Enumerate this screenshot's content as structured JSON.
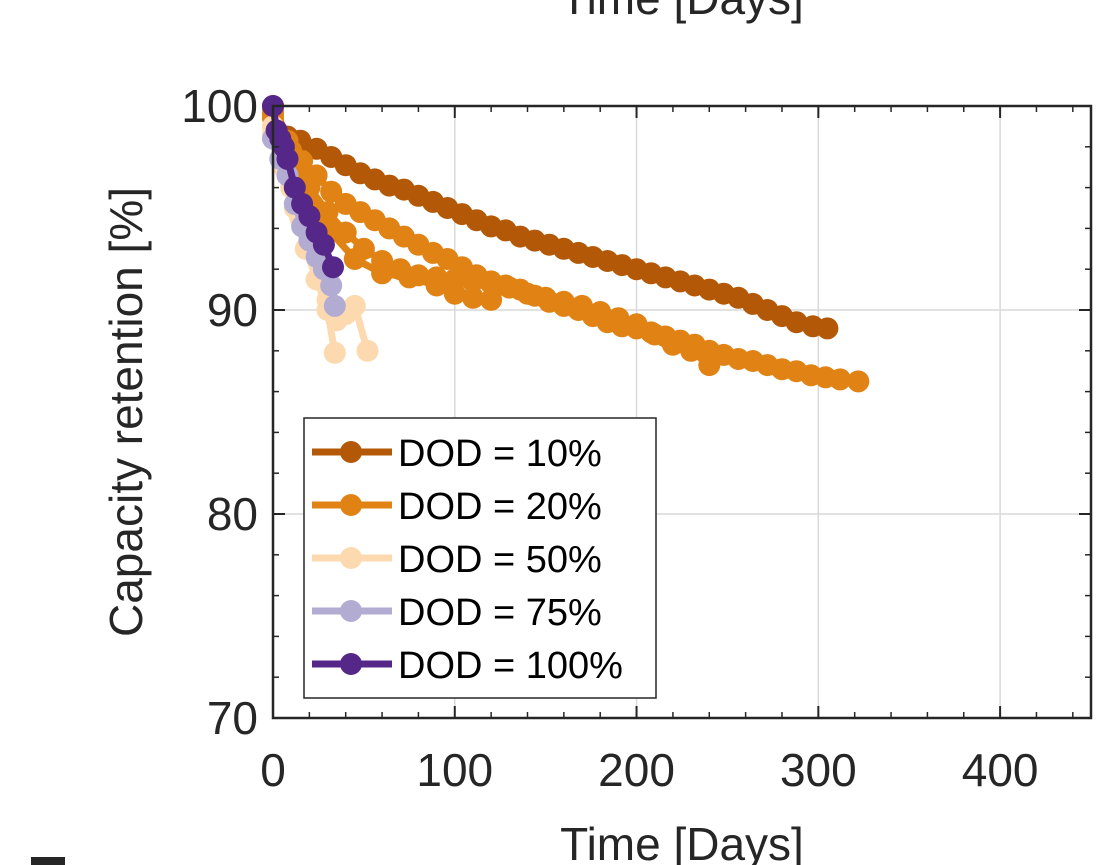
{
  "top_fragment": "Time [Days]",
  "panel_mark": "-",
  "chart_data": {
    "type": "line",
    "xlabel": "Time [Days]",
    "ylabel": "Capacity retention [%]",
    "xlim": [
      0,
      450
    ],
    "ylim": [
      70,
      100
    ],
    "xticks": [
      0,
      100,
      200,
      300,
      400
    ],
    "yticks": [
      70,
      80,
      90,
      100
    ],
    "grid": true,
    "legend_position": "bottom-left",
    "series": [
      {
        "name": "DOD = 10%",
        "color": "#B35806",
        "points": [
          [
            [
              0,
              100
            ],
            [
              8,
              98.5
            ],
            [
              15,
              98.3
            ],
            [
              24,
              97.9
            ],
            [
              32,
              97.5
            ],
            [
              40,
              97.1
            ],
            [
              48,
              96.7
            ],
            [
              56,
              96.4
            ],
            [
              64,
              96.1
            ],
            [
              72,
              95.9
            ],
            [
              80,
              95.6
            ],
            [
              88,
              95.3
            ],
            [
              96,
              95.0
            ],
            [
              104,
              94.7
            ],
            [
              112,
              94.4
            ],
            [
              120,
              94.1
            ],
            [
              128,
              93.9
            ],
            [
              136,
              93.6
            ],
            [
              144,
              93.4
            ],
            [
              152,
              93.2
            ],
            [
              160,
              93.0
            ],
            [
              168,
              92.8
            ],
            [
              176,
              92.6
            ],
            [
              184,
              92.4
            ],
            [
              192,
              92.2
            ],
            [
              200,
              92.0
            ],
            [
              208,
              91.8
            ],
            [
              216,
              91.6
            ],
            [
              224,
              91.4
            ],
            [
              232,
              91.2
            ],
            [
              240,
              91.0
            ],
            [
              248,
              90.8
            ],
            [
              256,
              90.6
            ],
            [
              264,
              90.3
            ],
            [
              272,
              90.0
            ],
            [
              280,
              89.7
            ],
            [
              288,
              89.4
            ],
            [
              297,
              89.2
            ],
            [
              305,
              89.1
            ]
          ]
        ]
      },
      {
        "name": "DOD = 20%",
        "color": "#E08214",
        "points": [
          [
            [
              0,
              99.8
            ],
            [
              8,
              98.3
            ],
            [
              16,
              97.3
            ],
            [
              24,
              96.6
            ],
            [
              32,
              95.8
            ],
            [
              40,
              95.2
            ],
            [
              48,
              94.8
            ],
            [
              56,
              94.4
            ],
            [
              64,
              94.0
            ],
            [
              72,
              93.6
            ],
            [
              80,
              93.2
            ],
            [
              88,
              92.8
            ],
            [
              96,
              92.5
            ],
            [
              104,
              92.1
            ],
            [
              112,
              91.7
            ],
            [
              120,
              91.4
            ],
            [
              128,
              91.2
            ],
            [
              136,
              91.0
            ],
            [
              144,
              90.7
            ],
            [
              152,
              90.4
            ],
            [
              160,
              90.2
            ],
            [
              168,
              90.0
            ],
            [
              176,
              89.7
            ],
            [
              184,
              89.4
            ],
            [
              192,
              89.2
            ],
            [
              200,
              89.1
            ],
            [
              208,
              88.9
            ],
            [
              216,
              88.7
            ],
            [
              224,
              88.5
            ],
            [
              232,
              88.3
            ],
            [
              240,
              88.0
            ],
            [
              248,
              87.8
            ],
            [
              256,
              87.6
            ],
            [
              264,
              87.5
            ],
            [
              272,
              87.3
            ],
            [
              280,
              87.1
            ],
            [
              288,
              87.0
            ],
            [
              296,
              86.8
            ],
            [
              304,
              86.7
            ],
            [
              312,
              86.6
            ],
            [
              322,
              86.5
            ]
          ],
          [
            [
              0,
              99.6
            ],
            [
              10,
              97.8
            ],
            [
              20,
              96.0
            ],
            [
              30,
              94.8
            ],
            [
              40,
              93.8
            ],
            [
              50,
              93.0
            ],
            [
              60,
              92.4
            ],
            [
              70,
              92.0
            ],
            [
              80,
              91.7
            ],
            [
              90,
              91.6
            ],
            [
              100,
              91.5
            ],
            [
              110,
              91.4
            ],
            [
              120,
              91.3
            ],
            [
              130,
              91.1
            ],
            [
              140,
              90.8
            ],
            [
              150,
              90.6
            ],
            [
              160,
              90.4
            ],
            [
              170,
              90.2
            ],
            [
              180,
              89.9
            ],
            [
              190,
              89.6
            ],
            [
              200,
              89.3
            ],
            [
              210,
              88.8
            ],
            [
              220,
              88.3
            ],
            [
              230,
              88.0
            ],
            [
              240,
              87.3
            ]
          ],
          [
            [
              0,
              99.4
            ],
            [
              15,
              96.5
            ],
            [
              30,
              94.0
            ],
            [
              45,
              92.5
            ],
            [
              60,
              91.8
            ],
            [
              75,
              91.6
            ],
            [
              90,
              91.2
            ],
            [
              100,
              90.8
            ],
            [
              110,
              90.6
            ],
            [
              120,
              90.5
            ]
          ]
        ]
      },
      {
        "name": "DOD = 50%",
        "color": "#FDD9B0",
        "points": [
          [
            [
              0,
              99.0
            ],
            [
              5,
              97.5
            ],
            [
              10,
              96.0
            ],
            [
              15,
              94.5
            ],
            [
              20,
              93.0
            ],
            [
              25,
              91.5
            ],
            [
              30,
              90.5
            ],
            [
              35,
              89.5
            ],
            [
              40,
              89.8
            ],
            [
              45,
              90.2
            ],
            [
              52,
              88.0
            ]
          ],
          [
            [
              0,
              98.6
            ],
            [
              6,
              97.0
            ],
            [
              12,
              95.0
            ],
            [
              18,
              93.0
            ],
            [
              24,
              91.5
            ],
            [
              30,
              90.0
            ],
            [
              34,
              87.9
            ]
          ]
        ]
      },
      {
        "name": "DOD = 75%",
        "color": "#B2ABD2",
        "points": [
          [
            [
              0,
              98.4
            ],
            [
              4,
              97.4
            ],
            [
              8,
              96.6
            ],
            [
              12,
              95.2
            ],
            [
              16,
              94.1
            ],
            [
              20,
              93.4
            ],
            [
              24,
              92.6
            ],
            [
              28,
              92.0
            ],
            [
              32,
              91.2
            ],
            [
              34,
              90.2
            ]
          ]
        ]
      },
      {
        "name": "DOD = 100%",
        "color": "#542788",
        "points": [
          [
            [
              0,
              100.0
            ],
            [
              2,
              98.8
            ],
            [
              4,
              98.4
            ],
            [
              6,
              98.0
            ],
            [
              8,
              97.4
            ],
            [
              12,
              96.0
            ],
            [
              16,
              95.2
            ],
            [
              20,
              94.6
            ],
            [
              24,
              93.8
            ],
            [
              28,
              93.2
            ],
            [
              33,
              92.1
            ]
          ]
        ]
      }
    ]
  }
}
